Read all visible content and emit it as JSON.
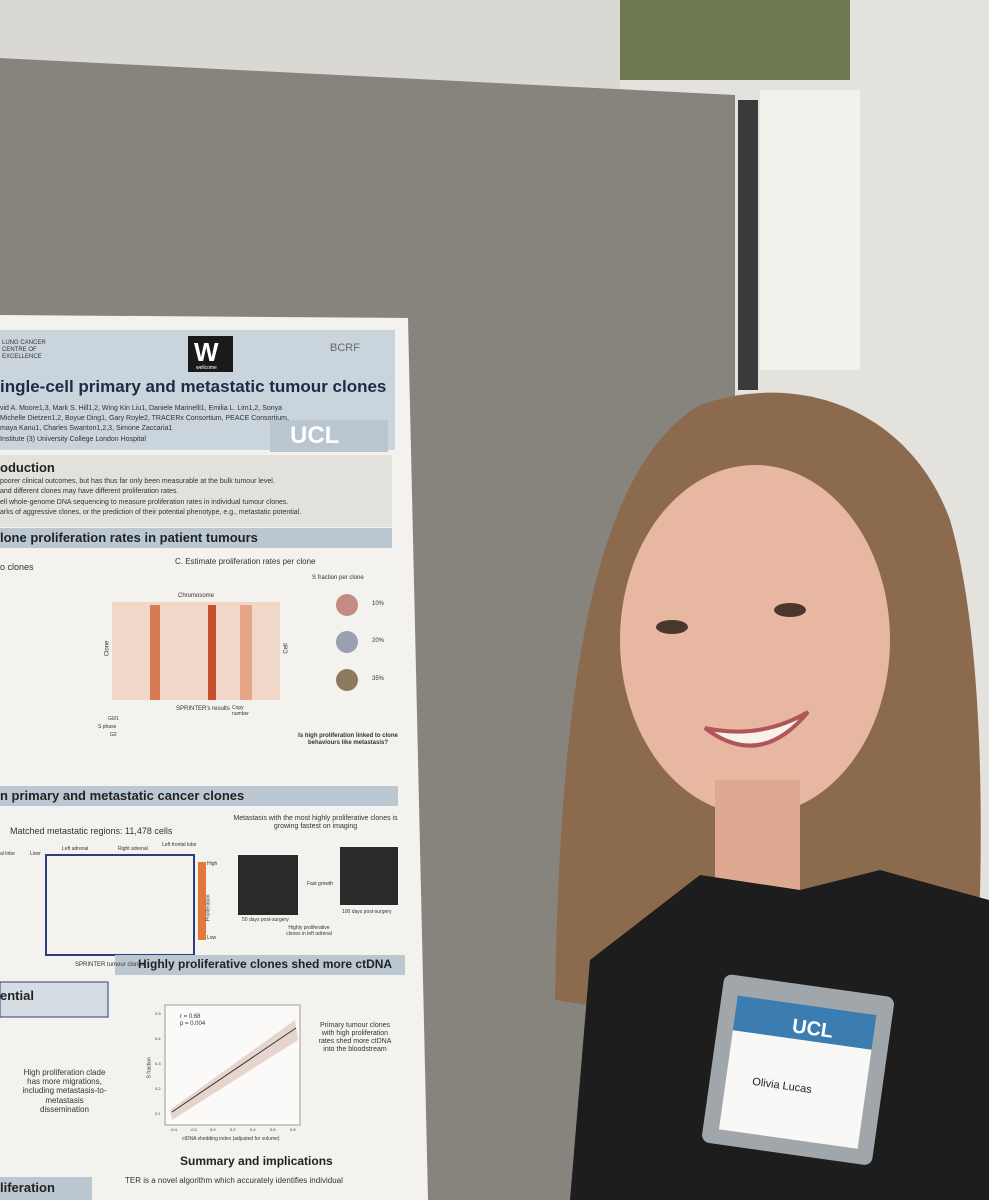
{
  "poster": {
    "logos": {
      "lung": "LUNG CANCER CENTRE OF EXCELLENCE",
      "wellcome_mark": "W",
      "wellcome": "wellcome",
      "bcrf": "BCRF",
      "ucl": "UCL"
    },
    "title": "ingle-cell primary and metastatic tumour clones",
    "authors": [
      "vid A. Moore1,3, Mark S. Hill1,2, Wing Kin Liu1, Daniele Marinelli1, Emilia L. Lim1,2, Sonya",
      "Michelle Dietzen1,2, Boyue Ding1, Gary Royle2, TRACERx Consortium, PEACE Consortium,",
      "maya Kanu1, Charles Swanton1,2,3, Simone Zaccaria1",
      "Institute (3) University College London Hospital"
    ],
    "intro": {
      "heading": "oduction",
      "lines": [
        "poorer clinical outcomes, but has thus far only been measurable at the bulk tumour level.",
        "and different clones may have different proliferation rates.",
        "ell whole-genome DNA sequencing to measure proliferation rates in individual tumour clones.",
        "arks of aggressive clones, or the prediction of their potential phenotype, e.g., metastatic potential."
      ]
    },
    "section1": {
      "heading": "lone proliferation rates in patient tumours",
      "left_label": "o clones",
      "panel_c": "C. Estimate proliferation rates per clone",
      "s_fraction": "S fraction per clone",
      "chromosome": "Chromosome",
      "clone": "Clone",
      "cell": "Cell",
      "percents": [
        "10%",
        "20%",
        "35%"
      ],
      "results": "SPRINTER's results",
      "phases": [
        "G0/1",
        "S phase",
        "G2"
      ],
      "copy_number": "Copy number",
      "question": "Is high proliferation linked to clone behaviours like metastasis?"
    },
    "section2": {
      "heading": "n primary and metastatic cancer clones",
      "matched": "Matched metastatic regions: 11,478 cells",
      "regions": [
        "al lobe",
        "Liver",
        "Left adrenal",
        "Right adrenal",
        "Left frontal lobe"
      ],
      "high": "High",
      "proliferation": "Proliferation",
      "low": "Low",
      "clones": "SPRINTER tumour clones",
      "imaging": "Metastasis with the most highly proliferative clones is growing fastest on imaging",
      "fast": "Fast growth",
      "day50": "50 days post-surgery",
      "day100": "100 days post-surgery",
      "adrenal": "Highly proliferative clones in left adrenal"
    },
    "section3": {
      "heading": "ential",
      "migration": "High proliferation clade has more migrations, including metastasis-to-metastasis dissemination",
      "ctdna_heading": "Highly proliferative clones shed more ctDNA",
      "r": "r = 0.68",
      "p": "p = 0.004",
      "y_label": "S fraction",
      "x_label": "ctDNA shedding index (adjusted for volume)",
      "y_ticks": [
        "0.5",
        "0.4",
        "0.3",
        "0.2",
        "0.1"
      ],
      "x_ticks": [
        "-0.4",
        "-0.2",
        "0.0",
        "0.2",
        "0.4",
        "0.6",
        "0.8"
      ],
      "caption": "Primary tumour clones with high proliferation rates shed more ctDNA into the bloodstream"
    },
    "summary": {
      "heading": "Summary and implications",
      "side": "liferation",
      "line": "TER is a novel algorithm which accurately identifies individual"
    }
  },
  "badge": {
    "logo": "UCL",
    "name": "Olivia Lucas"
  }
}
